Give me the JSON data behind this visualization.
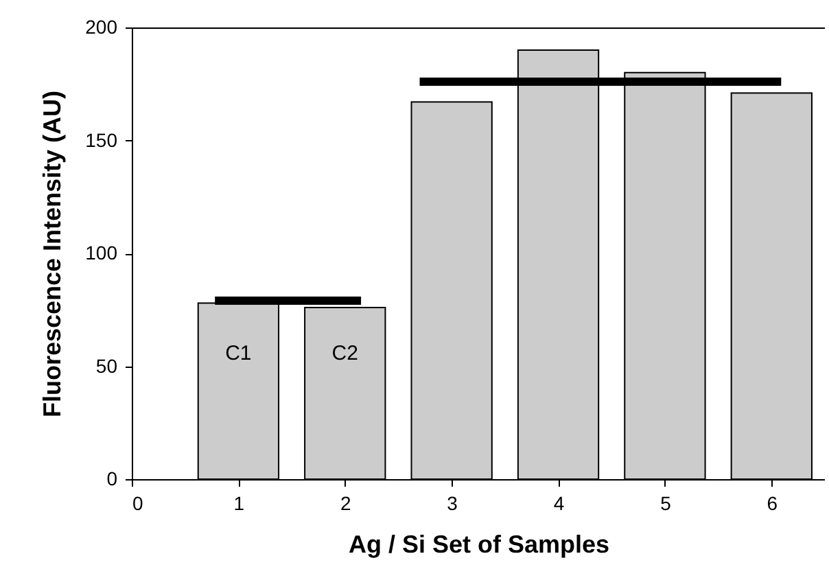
{
  "chart_data": {
    "type": "bar",
    "xlabel": "Ag / Si Set of Samples",
    "ylabel": "Fluorescence Intensity (AU)",
    "xlim": [
      0,
      6.5
    ],
    "xticks": [
      0,
      1,
      2,
      3,
      4,
      5,
      6
    ],
    "ylim": [
      0,
      200
    ],
    "yticks": [
      0,
      50,
      100,
      150,
      200
    ],
    "x": [
      1,
      2,
      3,
      4,
      5,
      6
    ],
    "series": [
      {
        "color": "#cccccc",
        "values": [
          78,
          76,
          167,
          190,
          180,
          171
        ]
      },
      {
        "type": "line",
        "color": "#000000",
        "x": [
          0.78,
          2.15
        ],
        "values": [
          79,
          79
        ]
      },
      {
        "type": "line",
        "color": "#000000",
        "x": [
          2.7,
          6.09
        ],
        "values": [
          176,
          176
        ]
      }
    ],
    "annotations": [
      "C1",
      "C2"
    ]
  }
}
